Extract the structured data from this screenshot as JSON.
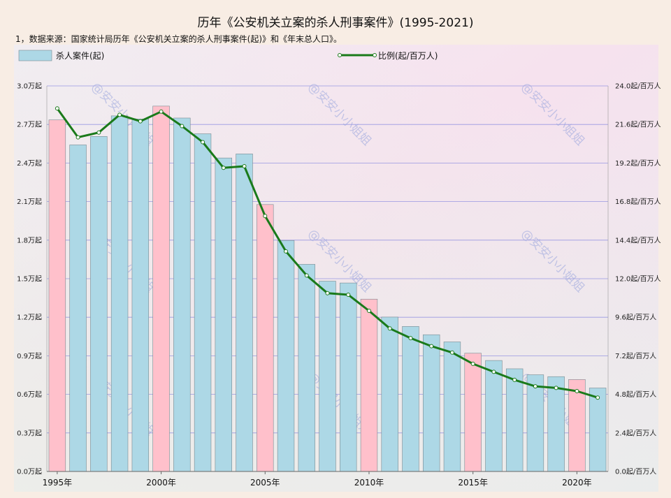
{
  "title": "历年《公安机关立案的杀人刑事案件》(1995-2021)",
  "source": "1，数据来源：国家统计局历年《公安机关立案的杀人刑事案件(起)》和《年末总人口》。",
  "watermark": "@安安小小姐姐",
  "chart_data": {
    "type": "bar",
    "years": [
      1995,
      1996,
      1997,
      1998,
      1999,
      2000,
      2001,
      2002,
      2003,
      2004,
      2005,
      2006,
      2007,
      2008,
      2009,
      2010,
      2011,
      2012,
      2013,
      2014,
      2015,
      2016,
      2017,
      2018,
      2019,
      2020,
      2021
    ],
    "x_tick_labels": [
      "1995年",
      "2000年",
      "2005年",
      "2010年",
      "2015年",
      "2020年"
    ],
    "highlight_years": [
      1995,
      2000,
      2005,
      2010,
      2015,
      2020
    ],
    "series": [
      {
        "name": "杀人案件(起)",
        "kind": "bar",
        "axis": "left",
        "values": [
          27356,
          25411,
          26070,
          27670,
          27426,
          28429,
          27501,
          26276,
          24393,
          24711,
          20770,
          17973,
          16119,
          14811,
          14667,
          13410,
          12013,
          11286,
          10640,
          10083,
          9200,
          8634,
          7990,
          7525,
          7379,
          7157,
          6495
        ]
      },
      {
        "name": "比例(起/百万人)",
        "kind": "line",
        "axis": "right",
        "values": [
          22.6,
          20.8,
          21.1,
          22.2,
          21.8,
          22.4,
          21.5,
          20.5,
          18.9,
          19.0,
          15.9,
          13.7,
          12.2,
          11.1,
          11.0,
          10.0,
          8.9,
          8.3,
          7.8,
          7.4,
          6.7,
          6.2,
          5.7,
          5.3,
          5.2,
          5.0,
          4.6
        ]
      }
    ],
    "y_left": {
      "min": 0,
      "max": 30000,
      "tick_labels": [
        "0.0万起",
        "0.3万起",
        "0.6万起",
        "0.9万起",
        "1.2万起",
        "1.5万起",
        "1.8万起",
        "2.1万起",
        "2.4万起",
        "2.7万起",
        "3.0万起"
      ]
    },
    "y_right": {
      "min": 0,
      "max": 24,
      "tick_labels": [
        "0.0起/百万人",
        "2.4起/百万人",
        "4.8起/百万人",
        "7.2起/百万人",
        "9.6起/百万人",
        "12.0起/百万人",
        "14.4起/百万人",
        "16.8起/百万人",
        "19.2起/百万人",
        "21.6起/百万人",
        "24.0起/百万人"
      ]
    },
    "grid": true,
    "legend_placement": "top",
    "colors": {
      "bar": "#add8e6",
      "bar_highlight": "#ffc0cb",
      "line": "#1a7a1a",
      "grid": "#8a8ae0",
      "bar_edge": "#7a8a90"
    }
  }
}
